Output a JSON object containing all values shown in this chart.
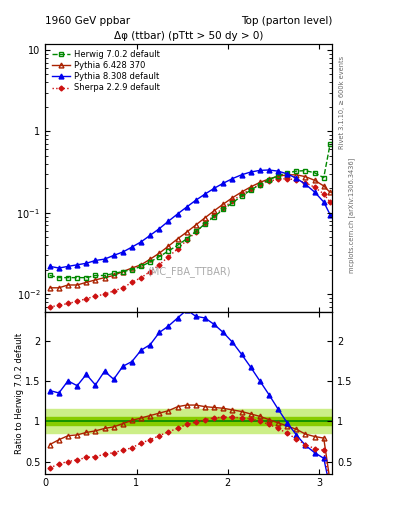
{
  "title_left": "1960 GeV ppbar",
  "title_right": "Top (parton level)",
  "plot_title": "Δφ (ttbar) (pTtt > 50 dy > 0)",
  "watermark": "(MC_FBA_TTBAR)",
  "right_label_top": "Rivet 3.1.10, ≥ 600k events",
  "right_label_bot": "mcplots.cern.ch [arXiv:1306.3436]",
  "ylabel_ratio": "Ratio to Herwig 7.0.2 default",
  "xlim": [
    0,
    3.14159
  ],
  "ylim_main": [
    0.006,
    12.0
  ],
  "ylim_ratio": [
    0.35,
    2.35
  ],
  "series": [
    {
      "label": "Herwig 7.0.2 default",
      "color": "#008800",
      "marker": "s",
      "linestyle": "--",
      "fillstyle": "none",
      "linewidth": 1.0,
      "markersize": 3.5
    },
    {
      "label": "Pythia 6.428 370",
      "color": "#aa2200",
      "marker": "^",
      "linestyle": "-",
      "fillstyle": "none",
      "linewidth": 1.0,
      "markersize": 3.5
    },
    {
      "label": "Pythia 8.308 default",
      "color": "#0000ee",
      "marker": "^",
      "linestyle": "-",
      "fillstyle": "full",
      "linewidth": 1.0,
      "markersize": 3.5
    },
    {
      "label": "Sherpa 2.2.9 default",
      "color": "#cc1111",
      "marker": "D",
      "linestyle": ":",
      "fillstyle": "full",
      "linewidth": 1.0,
      "markersize": 2.5
    }
  ],
  "band_color_inner": "#88cc00",
  "band_color_outer": "#ccee88",
  "band_inner": 0.05,
  "band_outer": 0.15,
  "herwig_x": [
    0.05,
    0.15,
    0.25,
    0.35,
    0.45,
    0.55,
    0.65,
    0.75,
    0.85,
    0.95,
    1.05,
    1.15,
    1.25,
    1.35,
    1.45,
    1.55,
    1.65,
    1.75,
    1.85,
    1.95,
    2.05,
    2.15,
    2.25,
    2.35,
    2.45,
    2.55,
    2.65,
    2.75,
    2.85,
    2.95,
    3.05,
    3.12
  ],
  "herwig_y": [
    0.017,
    0.016,
    0.016,
    0.016,
    0.016,
    0.017,
    0.017,
    0.018,
    0.019,
    0.02,
    0.022,
    0.025,
    0.029,
    0.034,
    0.04,
    0.048,
    0.059,
    0.073,
    0.09,
    0.11,
    0.133,
    0.16,
    0.19,
    0.222,
    0.255,
    0.285,
    0.31,
    0.325,
    0.33,
    0.31,
    0.27,
    0.7
  ],
  "pythia6_x": [
    0.05,
    0.15,
    0.25,
    0.35,
    0.45,
    0.55,
    0.65,
    0.75,
    0.85,
    0.95,
    1.05,
    1.15,
    1.25,
    1.35,
    1.45,
    1.55,
    1.65,
    1.75,
    1.85,
    1.95,
    2.05,
    2.15,
    2.25,
    2.35,
    2.45,
    2.55,
    2.65,
    2.75,
    2.85,
    2.95,
    3.05,
    3.12
  ],
  "pythia6_y": [
    0.012,
    0.012,
    0.013,
    0.013,
    0.014,
    0.015,
    0.016,
    0.017,
    0.019,
    0.021,
    0.023,
    0.027,
    0.032,
    0.039,
    0.048,
    0.058,
    0.071,
    0.087,
    0.106,
    0.128,
    0.153,
    0.18,
    0.208,
    0.236,
    0.261,
    0.281,
    0.293,
    0.293,
    0.278,
    0.251,
    0.214,
    0.178
  ],
  "pythia8_x": [
    0.05,
    0.15,
    0.25,
    0.35,
    0.45,
    0.55,
    0.65,
    0.75,
    0.85,
    0.95,
    1.05,
    1.15,
    1.25,
    1.35,
    1.45,
    1.55,
    1.65,
    1.75,
    1.85,
    1.95,
    2.05,
    2.15,
    2.25,
    2.35,
    2.45,
    2.55,
    2.65,
    2.75,
    2.85,
    2.95,
    3.05,
    3.12
  ],
  "pythia8_y": [
    0.022,
    0.021,
    0.022,
    0.023,
    0.024,
    0.026,
    0.027,
    0.03,
    0.033,
    0.038,
    0.044,
    0.053,
    0.064,
    0.079,
    0.097,
    0.118,
    0.143,
    0.17,
    0.2,
    0.231,
    0.263,
    0.293,
    0.317,
    0.332,
    0.336,
    0.325,
    0.301,
    0.266,
    0.224,
    0.18,
    0.136,
    0.095
  ],
  "sherpa_x": [
    0.05,
    0.15,
    0.25,
    0.35,
    0.45,
    0.55,
    0.65,
    0.75,
    0.85,
    0.95,
    1.05,
    1.15,
    1.25,
    1.35,
    1.45,
    1.55,
    1.65,
    1.75,
    1.85,
    1.95,
    2.05,
    2.15,
    2.25,
    2.35,
    2.45,
    2.55,
    2.65,
    2.75,
    2.85,
    2.95,
    3.05,
    3.12
  ],
  "sherpa_y": [
    0.007,
    0.0073,
    0.0077,
    0.0082,
    0.0088,
    0.0095,
    0.01,
    0.011,
    0.012,
    0.014,
    0.016,
    0.019,
    0.023,
    0.029,
    0.036,
    0.046,
    0.058,
    0.074,
    0.093,
    0.115,
    0.14,
    0.168,
    0.196,
    0.222,
    0.244,
    0.259,
    0.263,
    0.254,
    0.234,
    0.206,
    0.171,
    0.135
  ],
  "ratio_pythia6": [
    0.71,
    0.77,
    0.82,
    0.83,
    0.86,
    0.88,
    0.91,
    0.93,
    0.97,
    1.01,
    1.04,
    1.07,
    1.1,
    1.13,
    1.18,
    1.2,
    1.2,
    1.18,
    1.17,
    1.16,
    1.14,
    1.12,
    1.09,
    1.06,
    1.02,
    0.98,
    0.94,
    0.9,
    0.84,
    0.81,
    0.79,
    0.25
  ],
  "ratio_pythia8_noisy": [
    1.38,
    1.35,
    1.5,
    1.44,
    1.58,
    1.45,
    1.62,
    1.52,
    1.68,
    1.74,
    1.88,
    1.95,
    2.1,
    2.18,
    2.28,
    2.38,
    2.3,
    2.28,
    2.2,
    2.1,
    1.98,
    1.83,
    1.67,
    1.5,
    1.33,
    1.15,
    0.98,
    0.83,
    0.7,
    0.61,
    0.54,
    0.17
  ],
  "ratio_sherpa": [
    0.42,
    0.47,
    0.5,
    0.52,
    0.55,
    0.56,
    0.59,
    0.61,
    0.64,
    0.67,
    0.73,
    0.77,
    0.82,
    0.87,
    0.91,
    0.96,
    0.99,
    1.02,
    1.04,
    1.05,
    1.05,
    1.04,
    1.03,
    1.0,
    0.96,
    0.91,
    0.85,
    0.78,
    0.71,
    0.66,
    0.64,
    0.2
  ]
}
